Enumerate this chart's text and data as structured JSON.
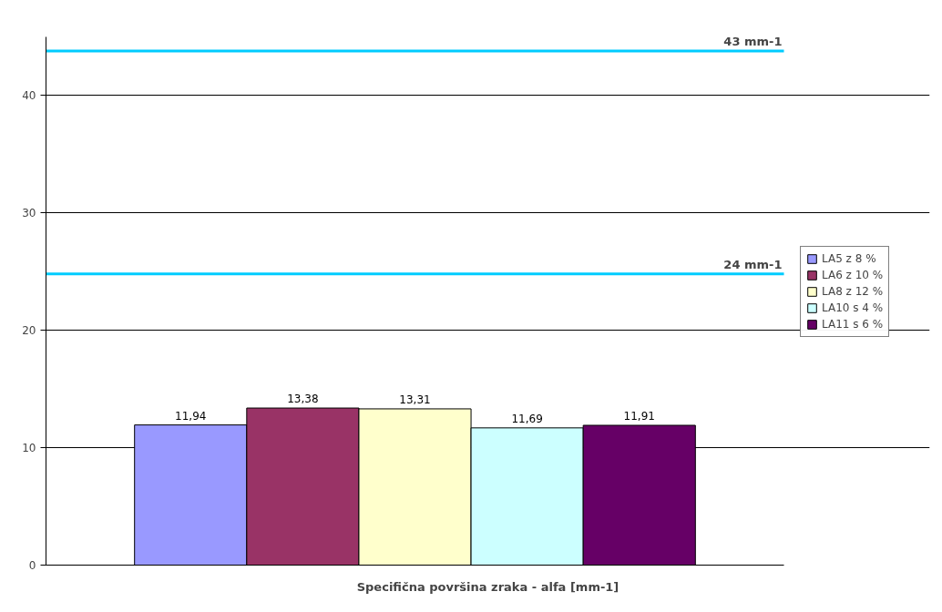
{
  "chart_data": {
    "type": "bar",
    "xlabel": "Specifična površina zraka - alfa [mm-1]",
    "categories": [
      null
    ],
    "series": [
      {
        "name": "LA5 z 8 %",
        "color": "#9999ff",
        "values": [
          11.94
        ],
        "value_labels": [
          "11,94"
        ]
      },
      {
        "name": "LA6 z 10 %",
        "color": "#993366",
        "values": [
          13.38
        ],
        "value_labels": [
          "13,38"
        ]
      },
      {
        "name": "LA8 z 12 %",
        "color": "#ffffcc",
        "values": [
          13.31
        ],
        "value_labels": [
          "13,31"
        ]
      },
      {
        "name": "LA10 s 4 %",
        "color": "#ccffff",
        "values": [
          11.69
        ],
        "value_labels": [
          "11,69"
        ]
      },
      {
        "name": "LA11 s 6 %",
        "color": "#660066",
        "values": [
          11.91
        ],
        "value_labels": [
          "11,91"
        ]
      }
    ],
    "ylim": [
      0,
      45
    ],
    "yticks": [
      0,
      10,
      20,
      30,
      40
    ],
    "grid": "y",
    "legend": "right",
    "ref_lines": [
      {
        "axis": "y",
        "value": 43.8,
        "label": "43 mm-1",
        "color": "#00ccff"
      },
      {
        "axis": "y",
        "value": 24.8,
        "label": "24 mm-1",
        "color": "#00ccff"
      }
    ]
  }
}
